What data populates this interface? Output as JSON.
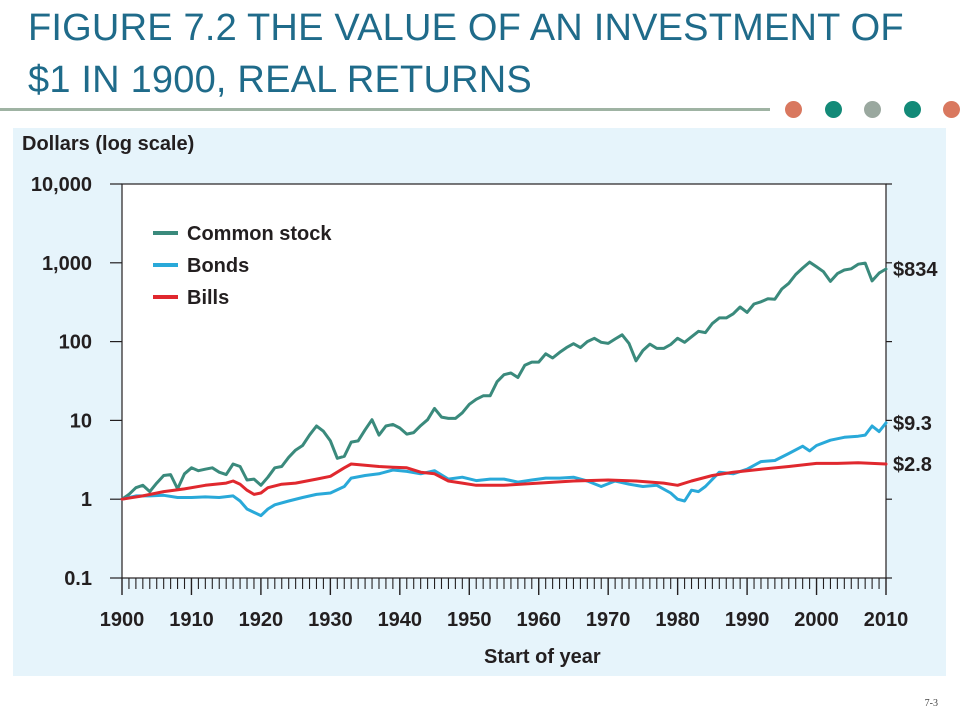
{
  "slide": {
    "title": "FIGURE 7.2 THE VALUE OF AN INVESTMENT OF $1 IN 1900, REAL RETURNS",
    "page_number": "7-3",
    "dot_colors": [
      "#d9785f",
      "#138a78",
      "#9aa89f",
      "#138a78",
      "#d9785f"
    ]
  },
  "chart_data": {
    "type": "line",
    "title": "",
    "xlabel": "Start of year",
    "ylabel": "Dollars (log scale)",
    "yscale": "log",
    "ylim": [
      0.1,
      10000
    ],
    "xlim": [
      1900,
      2010
    ],
    "x_ticks": [
      "1900",
      "1910",
      "1920",
      "1930",
      "1940",
      "1950",
      "1960",
      "1970",
      "1980",
      "1990",
      "2000",
      "2010"
    ],
    "y_ticks": [
      {
        "value": 0.1,
        "label": "0.1"
      },
      {
        "value": 1,
        "label": "1"
      },
      {
        "value": 10,
        "label": "10"
      },
      {
        "value": 100,
        "label": "100"
      },
      {
        "value": 1000,
        "label": "1,000"
      },
      {
        "value": 10000,
        "label": "10,000"
      }
    ],
    "legend_position": "top-left",
    "grid": false,
    "series": [
      {
        "name": "Common stock",
        "color": "#3a8a7c",
        "end_label": "$834",
        "points": [
          [
            1900,
            1
          ],
          [
            1901,
            1.15
          ],
          [
            1902,
            1.4
          ],
          [
            1903,
            1.5
          ],
          [
            1904,
            1.25
          ],
          [
            1905,
            1.6
          ],
          [
            1906,
            2
          ],
          [
            1907,
            2.05
          ],
          [
            1908,
            1.35
          ],
          [
            1909,
            2.1
          ],
          [
            1910,
            2.5
          ],
          [
            1911,
            2.3
          ],
          [
            1912,
            2.4
          ],
          [
            1913,
            2.5
          ],
          [
            1914,
            2.2
          ],
          [
            1915,
            2.05
          ],
          [
            1916,
            2.8
          ],
          [
            1917,
            2.6
          ],
          [
            1918,
            1.75
          ],
          [
            1919,
            1.8
          ],
          [
            1920,
            1.5
          ],
          [
            1921,
            1.9
          ],
          [
            1922,
            2.5
          ],
          [
            1923,
            2.6
          ],
          [
            1924,
            3.4
          ],
          [
            1925,
            4.2
          ],
          [
            1926,
            4.8
          ],
          [
            1927,
            6.5
          ],
          [
            1928,
            8.5
          ],
          [
            1929,
            7.3
          ],
          [
            1930,
            5.5
          ],
          [
            1931,
            3.3
          ],
          [
            1932,
            3.5
          ],
          [
            1933,
            5.3
          ],
          [
            1934,
            5.5
          ],
          [
            1935,
            7.6
          ],
          [
            1936,
            10.2
          ],
          [
            1937,
            6.5
          ],
          [
            1938,
            8.5
          ],
          [
            1939,
            8.9
          ],
          [
            1940,
            8
          ],
          [
            1941,
            6.7
          ],
          [
            1942,
            7
          ],
          [
            1943,
            8.6
          ],
          [
            1944,
            10.2
          ],
          [
            1945,
            14.2
          ],
          [
            1946,
            11
          ],
          [
            1947,
            10.6
          ],
          [
            1948,
            10.6
          ],
          [
            1949,
            12.5
          ],
          [
            1950,
            16
          ],
          [
            1951,
            18.5
          ],
          [
            1952,
            20.5
          ],
          [
            1953,
            20.5
          ],
          [
            1954,
            31
          ],
          [
            1955,
            38
          ],
          [
            1956,
            40
          ],
          [
            1957,
            35
          ],
          [
            1958,
            50
          ],
          [
            1959,
            55
          ],
          [
            1960,
            55
          ],
          [
            1961,
            70
          ],
          [
            1962,
            62
          ],
          [
            1963,
            73
          ],
          [
            1964,
            84
          ],
          [
            1965,
            94
          ],
          [
            1966,
            84
          ],
          [
            1967,
            100
          ],
          [
            1968,
            110
          ],
          [
            1969,
            98
          ],
          [
            1970,
            95
          ],
          [
            1971,
            108
          ],
          [
            1972,
            122
          ],
          [
            1973,
            95
          ],
          [
            1974,
            57
          ],
          [
            1975,
            77
          ],
          [
            1976,
            93
          ],
          [
            1977,
            82
          ],
          [
            1978,
            82
          ],
          [
            1979,
            92
          ],
          [
            1980,
            110
          ],
          [
            1981,
            98
          ],
          [
            1982,
            115
          ],
          [
            1983,
            135
          ],
          [
            1984,
            130
          ],
          [
            1985,
            170
          ],
          [
            1986,
            200
          ],
          [
            1987,
            200
          ],
          [
            1988,
            225
          ],
          [
            1989,
            275
          ],
          [
            1990,
            235
          ],
          [
            1991,
            300
          ],
          [
            1992,
            320
          ],
          [
            1993,
            350
          ],
          [
            1994,
            345
          ],
          [
            1995,
            465
          ],
          [
            1996,
            550
          ],
          [
            1997,
            710
          ],
          [
            1998,
            860
          ],
          [
            1999,
            1020
          ],
          [
            2000,
            890
          ],
          [
            2001,
            770
          ],
          [
            2002,
            580
          ],
          [
            2003,
            730
          ],
          [
            2004,
            810
          ],
          [
            2005,
            840
          ],
          [
            2006,
            960
          ],
          [
            2007,
            990
          ],
          [
            2008,
            590
          ],
          [
            2009,
            740
          ],
          [
            2010,
            834
          ]
        ]
      },
      {
        "name": "Bonds",
        "color": "#29a9d9",
        "end_label": "$9.3",
        "points": [
          [
            1900,
            1
          ],
          [
            1902,
            1.1
          ],
          [
            1904,
            1.1
          ],
          [
            1906,
            1.12
          ],
          [
            1908,
            1.05
          ],
          [
            1910,
            1.05
          ],
          [
            1912,
            1.07
          ],
          [
            1914,
            1.05
          ],
          [
            1916,
            1.1
          ],
          [
            1917,
            0.95
          ],
          [
            1918,
            0.75
          ],
          [
            1919,
            0.68
          ],
          [
            1920,
            0.62
          ],
          [
            1921,
            0.75
          ],
          [
            1922,
            0.85
          ],
          [
            1924,
            0.95
          ],
          [
            1926,
            1.05
          ],
          [
            1928,
            1.15
          ],
          [
            1930,
            1.2
          ],
          [
            1932,
            1.45
          ],
          [
            1933,
            1.85
          ],
          [
            1935,
            2
          ],
          [
            1937,
            2.1
          ],
          [
            1939,
            2.35
          ],
          [
            1941,
            2.25
          ],
          [
            1943,
            2.1
          ],
          [
            1945,
            2.3
          ],
          [
            1947,
            1.8
          ],
          [
            1949,
            1.9
          ],
          [
            1951,
            1.72
          ],
          [
            1953,
            1.8
          ],
          [
            1955,
            1.8
          ],
          [
            1957,
            1.65
          ],
          [
            1959,
            1.75
          ],
          [
            1961,
            1.85
          ],
          [
            1963,
            1.85
          ],
          [
            1965,
            1.9
          ],
          [
            1967,
            1.7
          ],
          [
            1969,
            1.45
          ],
          [
            1971,
            1.7
          ],
          [
            1973,
            1.55
          ],
          [
            1975,
            1.45
          ],
          [
            1977,
            1.5
          ],
          [
            1979,
            1.2
          ],
          [
            1980,
            1
          ],
          [
            1981,
            0.95
          ],
          [
            1982,
            1.3
          ],
          [
            1983,
            1.25
          ],
          [
            1984,
            1.45
          ],
          [
            1986,
            2.2
          ],
          [
            1988,
            2.1
          ],
          [
            1990,
            2.4
          ],
          [
            1992,
            3
          ],
          [
            1994,
            3.1
          ],
          [
            1996,
            3.8
          ],
          [
            1998,
            4.7
          ],
          [
            1999,
            4.1
          ],
          [
            2000,
            4.8
          ],
          [
            2002,
            5.6
          ],
          [
            2004,
            6.1
          ],
          [
            2006,
            6.3
          ],
          [
            2007,
            6.5
          ],
          [
            2008,
            8.5
          ],
          [
            2009,
            7.2
          ],
          [
            2010,
            9.3
          ]
        ]
      },
      {
        "name": "Bills",
        "color": "#e0282e",
        "end_label": "$2.8",
        "points": [
          [
            1900,
            1
          ],
          [
            1903,
            1.1
          ],
          [
            1906,
            1.25
          ],
          [
            1909,
            1.35
          ],
          [
            1912,
            1.5
          ],
          [
            1915,
            1.6
          ],
          [
            1916,
            1.7
          ],
          [
            1917,
            1.55
          ],
          [
            1918,
            1.3
          ],
          [
            1919,
            1.15
          ],
          [
            1920,
            1.2
          ],
          [
            1921,
            1.4
          ],
          [
            1923,
            1.55
          ],
          [
            1925,
            1.6
          ],
          [
            1928,
            1.8
          ],
          [
            1930,
            1.95
          ],
          [
            1932,
            2.5
          ],
          [
            1933,
            2.8
          ],
          [
            1935,
            2.7
          ],
          [
            1937,
            2.6
          ],
          [
            1939,
            2.55
          ],
          [
            1941,
            2.5
          ],
          [
            1943,
            2.2
          ],
          [
            1945,
            2.1
          ],
          [
            1947,
            1.7
          ],
          [
            1949,
            1.6
          ],
          [
            1951,
            1.5
          ],
          [
            1955,
            1.5
          ],
          [
            1960,
            1.6
          ],
          [
            1965,
            1.7
          ],
          [
            1970,
            1.75
          ],
          [
            1974,
            1.7
          ],
          [
            1978,
            1.6
          ],
          [
            1980,
            1.5
          ],
          [
            1982,
            1.7
          ],
          [
            1985,
            2
          ],
          [
            1988,
            2.2
          ],
          [
            1992,
            2.4
          ],
          [
            1996,
            2.6
          ],
          [
            2000,
            2.85
          ],
          [
            2003,
            2.85
          ],
          [
            2006,
            2.9
          ],
          [
            2008,
            2.85
          ],
          [
            2010,
            2.8
          ]
        ]
      }
    ]
  }
}
